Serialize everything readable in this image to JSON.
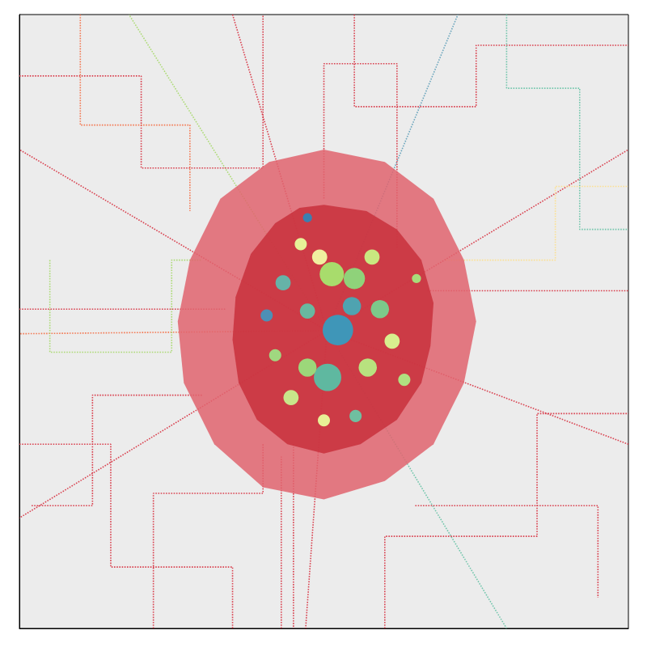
{
  "chart_data": {
    "type": "lines",
    "xlim": [
      0,
      100
    ],
    "ylim": [
      0,
      100
    ],
    "tick_labels": false,
    "grid": false,
    "line_style": "dotted",
    "series": [
      {
        "type": "line",
        "color": "#d7303f",
        "values": [
          [
            50.5,
            48.5
          ],
          [
            0,
            78
          ]
        ]
      },
      {
        "type": "line",
        "color": "#d7303f",
        "values": [
          [
            50.5,
            48.5
          ],
          [
            35,
            100
          ]
        ]
      },
      {
        "type": "line",
        "color": "#5e9fb8",
        "values": [
          [
            50.5,
            48.5
          ],
          [
            72,
            100
          ]
        ]
      },
      {
        "type": "line",
        "color": "#d7303f",
        "values": [
          [
            50.5,
            48.5
          ],
          [
            100,
            78
          ]
        ]
      },
      {
        "type": "line",
        "color": "#d7303f",
        "values": [
          [
            50.5,
            48.5
          ],
          [
            100,
            30
          ]
        ]
      },
      {
        "type": "line",
        "color": "#66c2a5",
        "values": [
          [
            50.5,
            48.5
          ],
          [
            80,
            0
          ]
        ]
      },
      {
        "type": "line",
        "color": "#d7303f",
        "values": [
          [
            50.5,
            48.5
          ],
          [
            47,
            0
          ]
        ]
      },
      {
        "type": "line",
        "color": "#d7303f",
        "values": [
          [
            50.5,
            48.5
          ],
          [
            0,
            18
          ]
        ]
      },
      {
        "type": "line",
        "color": "#a6d96a",
        "values": [
          [
            50.5,
            48.5
          ],
          [
            18,
            100
          ]
        ]
      },
      {
        "type": "line",
        "color": "#f46d43",
        "values": [
          [
            50.5,
            48.5
          ],
          [
            0,
            48
          ]
        ]
      },
      {
        "type": "line",
        "color": "#d7303f",
        "values": [
          [
            0,
            90
          ],
          [
            20,
            90
          ],
          [
            20,
            75
          ],
          [
            40,
            75
          ],
          [
            40,
            100
          ]
        ]
      },
      {
        "type": "line",
        "color": "#d7303f",
        "values": [
          [
            55,
            100
          ],
          [
            55,
            85
          ],
          [
            75,
            85
          ],
          [
            75,
            95
          ],
          [
            100,
            95
          ]
        ]
      },
      {
        "type": "line",
        "color": "#d7303f",
        "values": [
          [
            60,
            0
          ],
          [
            60,
            15
          ],
          [
            85,
            15
          ],
          [
            85,
            35
          ],
          [
            100,
            35
          ]
        ]
      },
      {
        "type": "line",
        "color": "#d7303f",
        "values": [
          [
            0,
            30
          ],
          [
            15,
            30
          ],
          [
            15,
            10
          ],
          [
            35,
            10
          ],
          [
            35,
            0
          ]
        ]
      },
      {
        "type": "line",
        "color": "#fee08b",
        "values": [
          [
            70,
            60
          ],
          [
            88,
            60
          ],
          [
            88,
            72
          ],
          [
            100,
            72
          ]
        ]
      },
      {
        "type": "line",
        "color": "#a6d96a",
        "values": [
          [
            5,
            60
          ],
          [
            5,
            45
          ],
          [
            25,
            45
          ],
          [
            25,
            60
          ],
          [
            30,
            60
          ]
        ]
      },
      {
        "type": "line",
        "color": "#d7303f",
        "values": [
          [
            65,
            20
          ],
          [
            95,
            20
          ],
          [
            95,
            5
          ]
        ]
      },
      {
        "type": "line",
        "color": "#f46d43",
        "values": [
          [
            10,
            100
          ],
          [
            10,
            82
          ],
          [
            28,
            82
          ],
          [
            28,
            68
          ]
        ]
      },
      {
        "type": "line",
        "color": "#66c2a5",
        "values": [
          [
            80,
            100
          ],
          [
            80,
            88
          ],
          [
            92,
            88
          ],
          [
            92,
            65
          ],
          [
            100,
            65
          ]
        ]
      },
      {
        "type": "line",
        "color": "#d7303f",
        "values": [
          [
            2,
            20
          ],
          [
            12,
            20
          ],
          [
            12,
            38
          ],
          [
            30,
            38
          ]
        ]
      },
      {
        "type": "line",
        "color": "#d7303f",
        "values": [
          [
            45,
            30
          ],
          [
            45,
            0
          ]
        ]
      },
      {
        "type": "line",
        "color": "#d7303f",
        "values": [
          [
            43,
            0
          ],
          [
            43,
            28
          ]
        ]
      },
      {
        "type": "line",
        "color": "#d7303f",
        "values": [
          [
            0,
            52
          ],
          [
            34,
            52
          ]
        ]
      },
      {
        "type": "line",
        "color": "#d7303f",
        "values": [
          [
            67,
            55
          ],
          [
            100,
            55
          ]
        ]
      },
      {
        "type": "line",
        "color": "#d7303f",
        "values": [
          [
            22,
            0
          ],
          [
            22,
            22
          ],
          [
            40,
            22
          ],
          [
            40,
            30
          ]
        ]
      },
      {
        "type": "line",
        "color": "#d7303f",
        "values": [
          [
            62,
            62
          ],
          [
            62,
            92
          ],
          [
            50,
            92
          ],
          [
            50,
            70
          ]
        ]
      },
      {
        "type": "polygon",
        "color": "#e0646e",
        "values": [
          [
            50,
            78
          ],
          [
            60,
            76
          ],
          [
            68,
            70
          ],
          [
            73,
            60
          ],
          [
            75,
            50
          ],
          [
            73,
            40
          ],
          [
            68,
            30
          ],
          [
            60,
            24
          ],
          [
            50,
            21
          ],
          [
            40,
            23
          ],
          [
            32,
            30
          ],
          [
            27,
            40
          ],
          [
            26,
            50
          ],
          [
            28,
            60
          ],
          [
            33,
            70
          ],
          [
            41,
            76
          ]
        ]
      },
      {
        "type": "polygon",
        "color": "#c8303c",
        "values": [
          [
            50,
            69
          ],
          [
            57,
            68
          ],
          [
            62,
            65
          ],
          [
            66,
            60
          ],
          [
            68,
            53
          ],
          [
            67.5,
            46
          ],
          [
            66,
            40
          ],
          [
            62,
            34
          ],
          [
            56,
            30
          ],
          [
            50,
            28.5
          ],
          [
            44,
            30
          ],
          [
            39,
            34
          ],
          [
            36,
            40
          ],
          [
            35,
            47
          ],
          [
            35.5,
            54
          ],
          [
            38,
            61
          ],
          [
            42,
            66
          ],
          [
            46,
            68.5
          ]
        ]
      }
    ],
    "spots": {
      "x": [
        52.3,
        51.3,
        55,
        57.9,
        49.3,
        46.2,
        50.6,
        47.3,
        57.2,
        59.2,
        61.2,
        43.3,
        40.6,
        42,
        44.6,
        50,
        55.2,
        63.2,
        47.3,
        65.2,
        54.6,
        47.3
      ],
      "y": [
        48.6,
        57.7,
        57,
        60.5,
        60.5,
        62.6,
        40.9,
        42.5,
        42.5,
        52,
        46.8,
        56.3,
        51,
        44.5,
        37.6,
        33.9,
        34.6,
        40.5,
        66.9,
        57,
        52.5,
        51.7
      ],
      "size": [
        5,
        4,
        3.5,
        2.5,
        2.5,
        2,
        4.5,
        3,
        3,
        3,
        2.5,
        2.5,
        2,
        2,
        2.5,
        2,
        2,
        2,
        1.5,
        1.5,
        3,
        2.5
      ],
      "colors": [
        "#3f96b8",
        "#a8dc6c",
        "#8fd27a",
        "#c9e880",
        "#f0f0a0",
        "#e6f298",
        "#5fb8a0",
        "#9cd77a",
        "#b8e27f",
        "#7cc98a",
        "#d8ee8e",
        "#66b3a8",
        "#4d8fb5",
        "#a0d880",
        "#c8e68a",
        "#e8f096",
        "#6fbfa0",
        "#b0e080",
        "#3b7fb0",
        "#a8dc7a",
        "#4fa3b0",
        "#68b8a0"
      ]
    }
  }
}
